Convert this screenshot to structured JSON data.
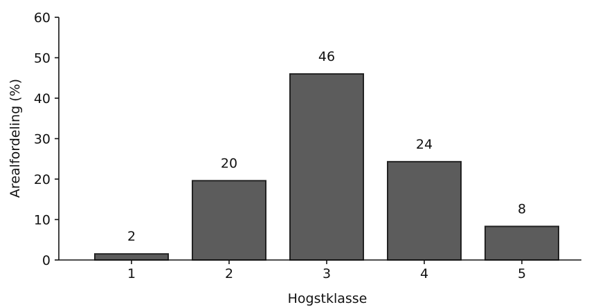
{
  "chart_data": {
    "type": "bar",
    "categories": [
      "1",
      "2",
      "3",
      "4",
      "5"
    ],
    "values": [
      2,
      20,
      46,
      24,
      8
    ],
    "bar_values_plotted": [
      1.5,
      19.6,
      46,
      24.3,
      8.3
    ],
    "data_labels": [
      "2",
      "20",
      "46",
      "24",
      "8"
    ],
    "xlabel": "Hogstklasse",
    "ylabel": "Arealfordeling (%)",
    "ylim": [
      0,
      60
    ],
    "yticks": [
      0,
      10,
      20,
      30,
      40,
      50,
      60
    ],
    "grid": false,
    "legend": "none",
    "bar_color": "#5c5c5c",
    "bar_edge_color": "#222222"
  }
}
